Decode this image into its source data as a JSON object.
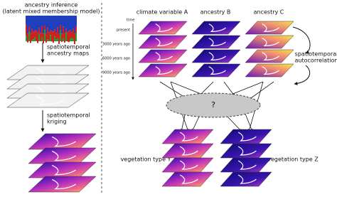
{
  "left": {
    "inference": [
      "ancestry inference",
      "(latent mixed membership model)"
    ],
    "maps": [
      "spatiotemporal",
      "ancestry maps"
    ],
    "kriging": [
      "spatiotemporal",
      "kriging"
    ]
  },
  "right": {
    "stacks": [
      "climate variable A",
      "ancestry B",
      "ancestry C"
    ],
    "time": {
      "label": "time",
      "ticks": [
        "present",
        "3000 years ago",
        "6000 years ago",
        "9000 years ago"
      ]
    },
    "autocorrelation": [
      "spatiotemporal",
      "autocorrelation"
    ],
    "unknown": "?",
    "outputs": [
      "vegetation type Y",
      "vegetation type Z"
    ]
  }
}
